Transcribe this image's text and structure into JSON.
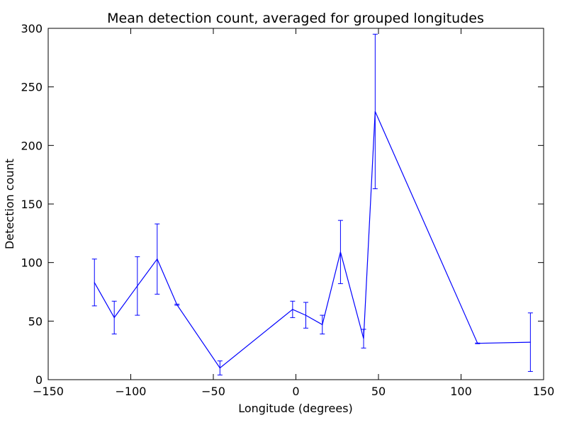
{
  "chart_data": {
    "type": "line",
    "title": "Mean detection count, averaged for grouped longitudes",
    "xlabel": "Longitude (degrees)",
    "ylabel": "Detection count",
    "xlim": [
      -150,
      150
    ],
    "ylim": [
      0,
      300
    ],
    "xticks": [
      -150,
      -100,
      -50,
      0,
      50,
      100,
      150
    ],
    "xtick_labels": [
      "−150",
      "−100",
      "−50",
      "0",
      "50",
      "100",
      "150"
    ],
    "yticks": [
      0,
      50,
      100,
      150,
      200,
      250,
      300
    ],
    "ytick_labels": [
      "0",
      "50",
      "100",
      "150",
      "200",
      "250",
      "300"
    ],
    "grid": false,
    "legend": "none",
    "series": [
      {
        "color": "#0000ff",
        "error_bars": "symmetric",
        "points": [
          {
            "x": -122,
            "y": 83,
            "err": 20
          },
          {
            "x": -110,
            "y": 53,
            "err": 14
          },
          {
            "x": -96,
            "y": 80,
            "err": 25
          },
          {
            "x": -84,
            "y": 103,
            "err": 30
          },
          {
            "x": -72,
            "y": 64,
            "err": 0.5
          },
          {
            "x": -46,
            "y": 10,
            "err": 6
          },
          {
            "x": -2,
            "y": 60,
            "err": 7
          },
          {
            "x": 6,
            "y": 55,
            "err": 11
          },
          {
            "x": 16,
            "y": 47,
            "err": 8
          },
          {
            "x": 27,
            "y": 109,
            "err": 27
          },
          {
            "x": 41,
            "y": 35,
            "err": 8
          },
          {
            "x": 48,
            "y": 229,
            "err": 66
          },
          {
            "x": 110,
            "y": 31,
            "err": 0.3
          },
          {
            "x": 142,
            "y": 32,
            "err": 25
          }
        ]
      }
    ]
  }
}
